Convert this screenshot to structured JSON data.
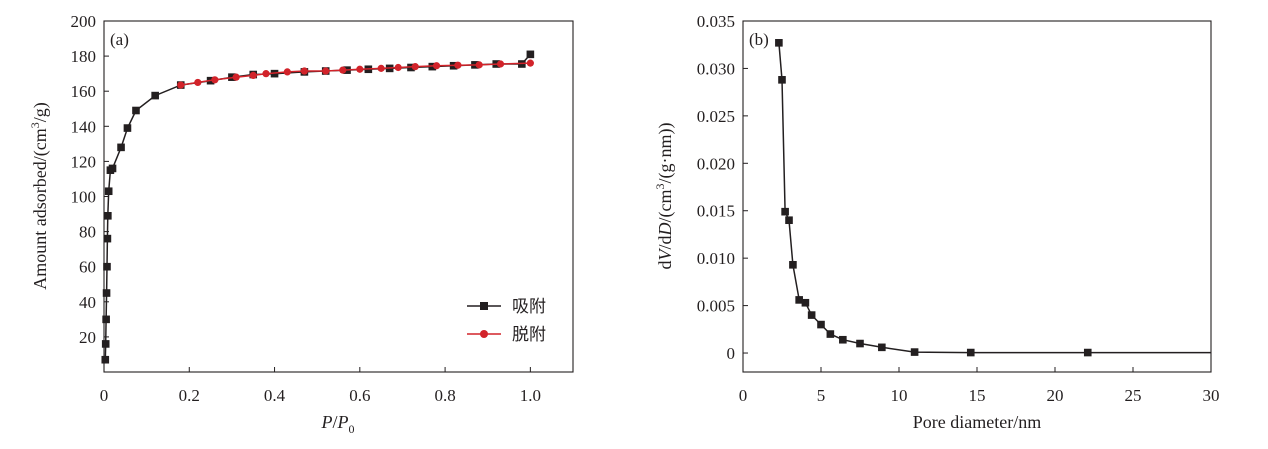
{
  "chart_data": [
    {
      "type": "line",
      "panel_label": "(a)",
      "xlabel": "P/P0",
      "ylabel": "Amount adsorbed/(cm³/g)",
      "xlim": [
        0,
        1.1
      ],
      "ylim": [
        0,
        200
      ],
      "x_ticks": [
        0,
        0.2,
        0.4,
        0.6,
        0.8,
        1.0
      ],
      "x_tick_labels": [
        "0",
        "0.2",
        "0.4",
        "0.6",
        "0.8",
        "1.0"
      ],
      "y_ticks": [
        20,
        40,
        60,
        80,
        100,
        120,
        140,
        160,
        180,
        200
      ],
      "y_tick_labels": [
        "20",
        "40",
        "60",
        "80",
        "100",
        "120",
        "140",
        "160",
        "180",
        "200"
      ],
      "legend_position": "bottom-right",
      "series": [
        {
          "name": "吸附",
          "color": "#231f20",
          "marker": "square",
          "points": [
            [
              0.003,
              7
            ],
            [
              0.004,
              16
            ],
            [
              0.005,
              30
            ],
            [
              0.006,
              45
            ],
            [
              0.007,
              60
            ],
            [
              0.008,
              76
            ],
            [
              0.009,
              89
            ],
            [
              0.011,
              103
            ],
            [
              0.015,
              115
            ],
            [
              0.02,
              116
            ],
            [
              0.04,
              128
            ],
            [
              0.055,
              139
            ],
            [
              0.075,
              149
            ],
            [
              0.12,
              157.5
            ],
            [
              0.18,
              163.5
            ],
            [
              0.25,
              166
            ],
            [
              0.3,
              168
            ],
            [
              0.35,
              169.5
            ],
            [
              0.4,
              170
            ],
            [
              0.47,
              171
            ],
            [
              0.52,
              171.5
            ],
            [
              0.57,
              172
            ],
            [
              0.62,
              172.5
            ],
            [
              0.67,
              173
            ],
            [
              0.72,
              173.5
            ],
            [
              0.77,
              174
            ],
            [
              0.82,
              174.5
            ],
            [
              0.87,
              175
            ],
            [
              0.92,
              175.5
            ],
            [
              0.98,
              175.5
            ],
            [
              1.0,
              181
            ]
          ]
        },
        {
          "name": "脱附",
          "color": "#d2232a",
          "marker": "circle",
          "points": [
            [
              1.0,
              176
            ],
            [
              0.93,
              175.5
            ],
            [
              0.88,
              175
            ],
            [
              0.83,
              174.8
            ],
            [
              0.78,
              174.5
            ],
            [
              0.73,
              174
            ],
            [
              0.69,
              173.5
            ],
            [
              0.65,
              173
            ],
            [
              0.6,
              172.5
            ],
            [
              0.56,
              172
            ],
            [
              0.52,
              171.5
            ],
            [
              0.47,
              171.5
            ],
            [
              0.43,
              171
            ],
            [
              0.38,
              170
            ],
            [
              0.35,
              169
            ],
            [
              0.31,
              168
            ],
            [
              0.26,
              166.5
            ],
            [
              0.22,
              165
            ],
            [
              0.18,
              163.5
            ]
          ]
        }
      ]
    },
    {
      "type": "line",
      "panel_label": "(b)",
      "xlabel": "Pore diameter/nm",
      "ylabel": "dV/dD/(cm³/(g·nm))",
      "xlim": [
        0,
        30
      ],
      "ylim": [
        -0.002,
        0.035
      ],
      "x_ticks": [
        0,
        5,
        10,
        15,
        20,
        25,
        30
      ],
      "x_tick_labels": [
        "0",
        "5",
        "10",
        "15",
        "20",
        "25",
        "30"
      ],
      "y_ticks": [
        0,
        0.005,
        0.01,
        0.015,
        0.02,
        0.025,
        0.03,
        0.035
      ],
      "y_tick_labels": [
        "0",
        "0.005",
        "0.010",
        "0.015",
        "0.020",
        "0.025",
        "0.030",
        "0.035"
      ],
      "series": [
        {
          "color": "#231f20",
          "marker": "square",
          "points": [
            [
              2.3,
              0.0327
            ],
            [
              2.5,
              0.0288
            ],
            [
              2.7,
              0.0149
            ],
            [
              2.95,
              0.014
            ],
            [
              3.2,
              0.0093
            ],
            [
              3.6,
              0.0056
            ],
            [
              4.0,
              0.0053
            ],
            [
              4.4,
              0.004
            ],
            [
              5.0,
              0.003
            ],
            [
              5.6,
              0.002
            ],
            [
              6.4,
              0.0014
            ],
            [
              7.5,
              0.001
            ],
            [
              8.9,
              0.0006
            ],
            [
              11.0,
              0.0001
            ],
            [
              14.6,
              5e-05
            ],
            [
              22.1,
              5e-05
            ],
            [
              30,
              5e-05
            ]
          ],
          "marked_points": 16
        }
      ]
    }
  ]
}
